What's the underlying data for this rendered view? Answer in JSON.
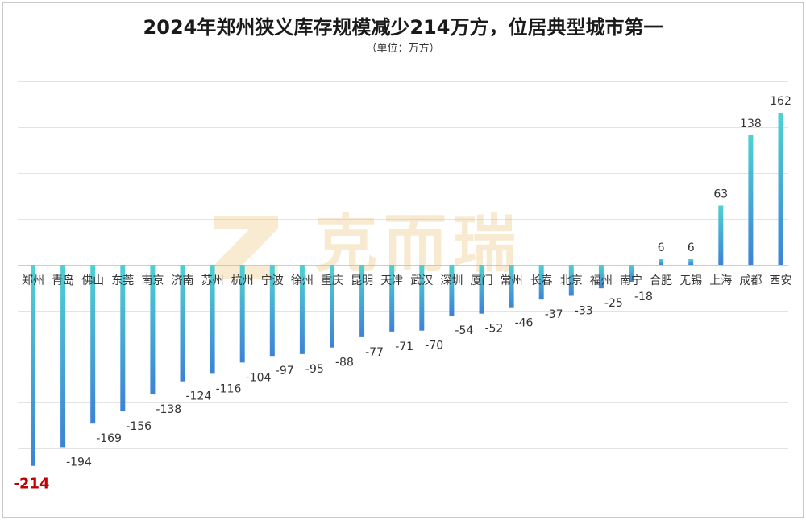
{
  "title": "2024年郑州狭义库存规模减少214万方，位居典型城市第一",
  "subtitle": "（单位：万方）",
  "watermark": "克而瑞",
  "colors": {
    "bar_top": "#4fd1d2",
    "bar_bottom": "#3d82d6",
    "highlight_label": "#c00000",
    "grid": "#e3e3e3",
    "watermark": "#e9b65a"
  },
  "chart_data": {
    "type": "bar",
    "categories": [
      "郑州",
      "青岛",
      "佛山",
      "东莞",
      "南京",
      "济南",
      "苏州",
      "杭州",
      "宁波",
      "徐州",
      "重庆",
      "昆明",
      "天津",
      "武汉",
      "深圳",
      "厦门",
      "常州",
      "长春",
      "北京",
      "福州",
      "南宁",
      "合肥",
      "无锡",
      "上海",
      "成都",
      "西安"
    ],
    "values": [
      -214,
      -194,
      -169,
      -156,
      -138,
      -124,
      -116,
      -104,
      -97,
      -95,
      -88,
      -77,
      -71,
      -70,
      -54,
      -52,
      -46,
      -37,
      -33,
      -25,
      -18,
      6,
      6,
      63,
      138,
      162
    ],
    "highlight_index": 0,
    "ylim": [
      -225,
      200
    ],
    "grid": true,
    "legend": "none"
  }
}
